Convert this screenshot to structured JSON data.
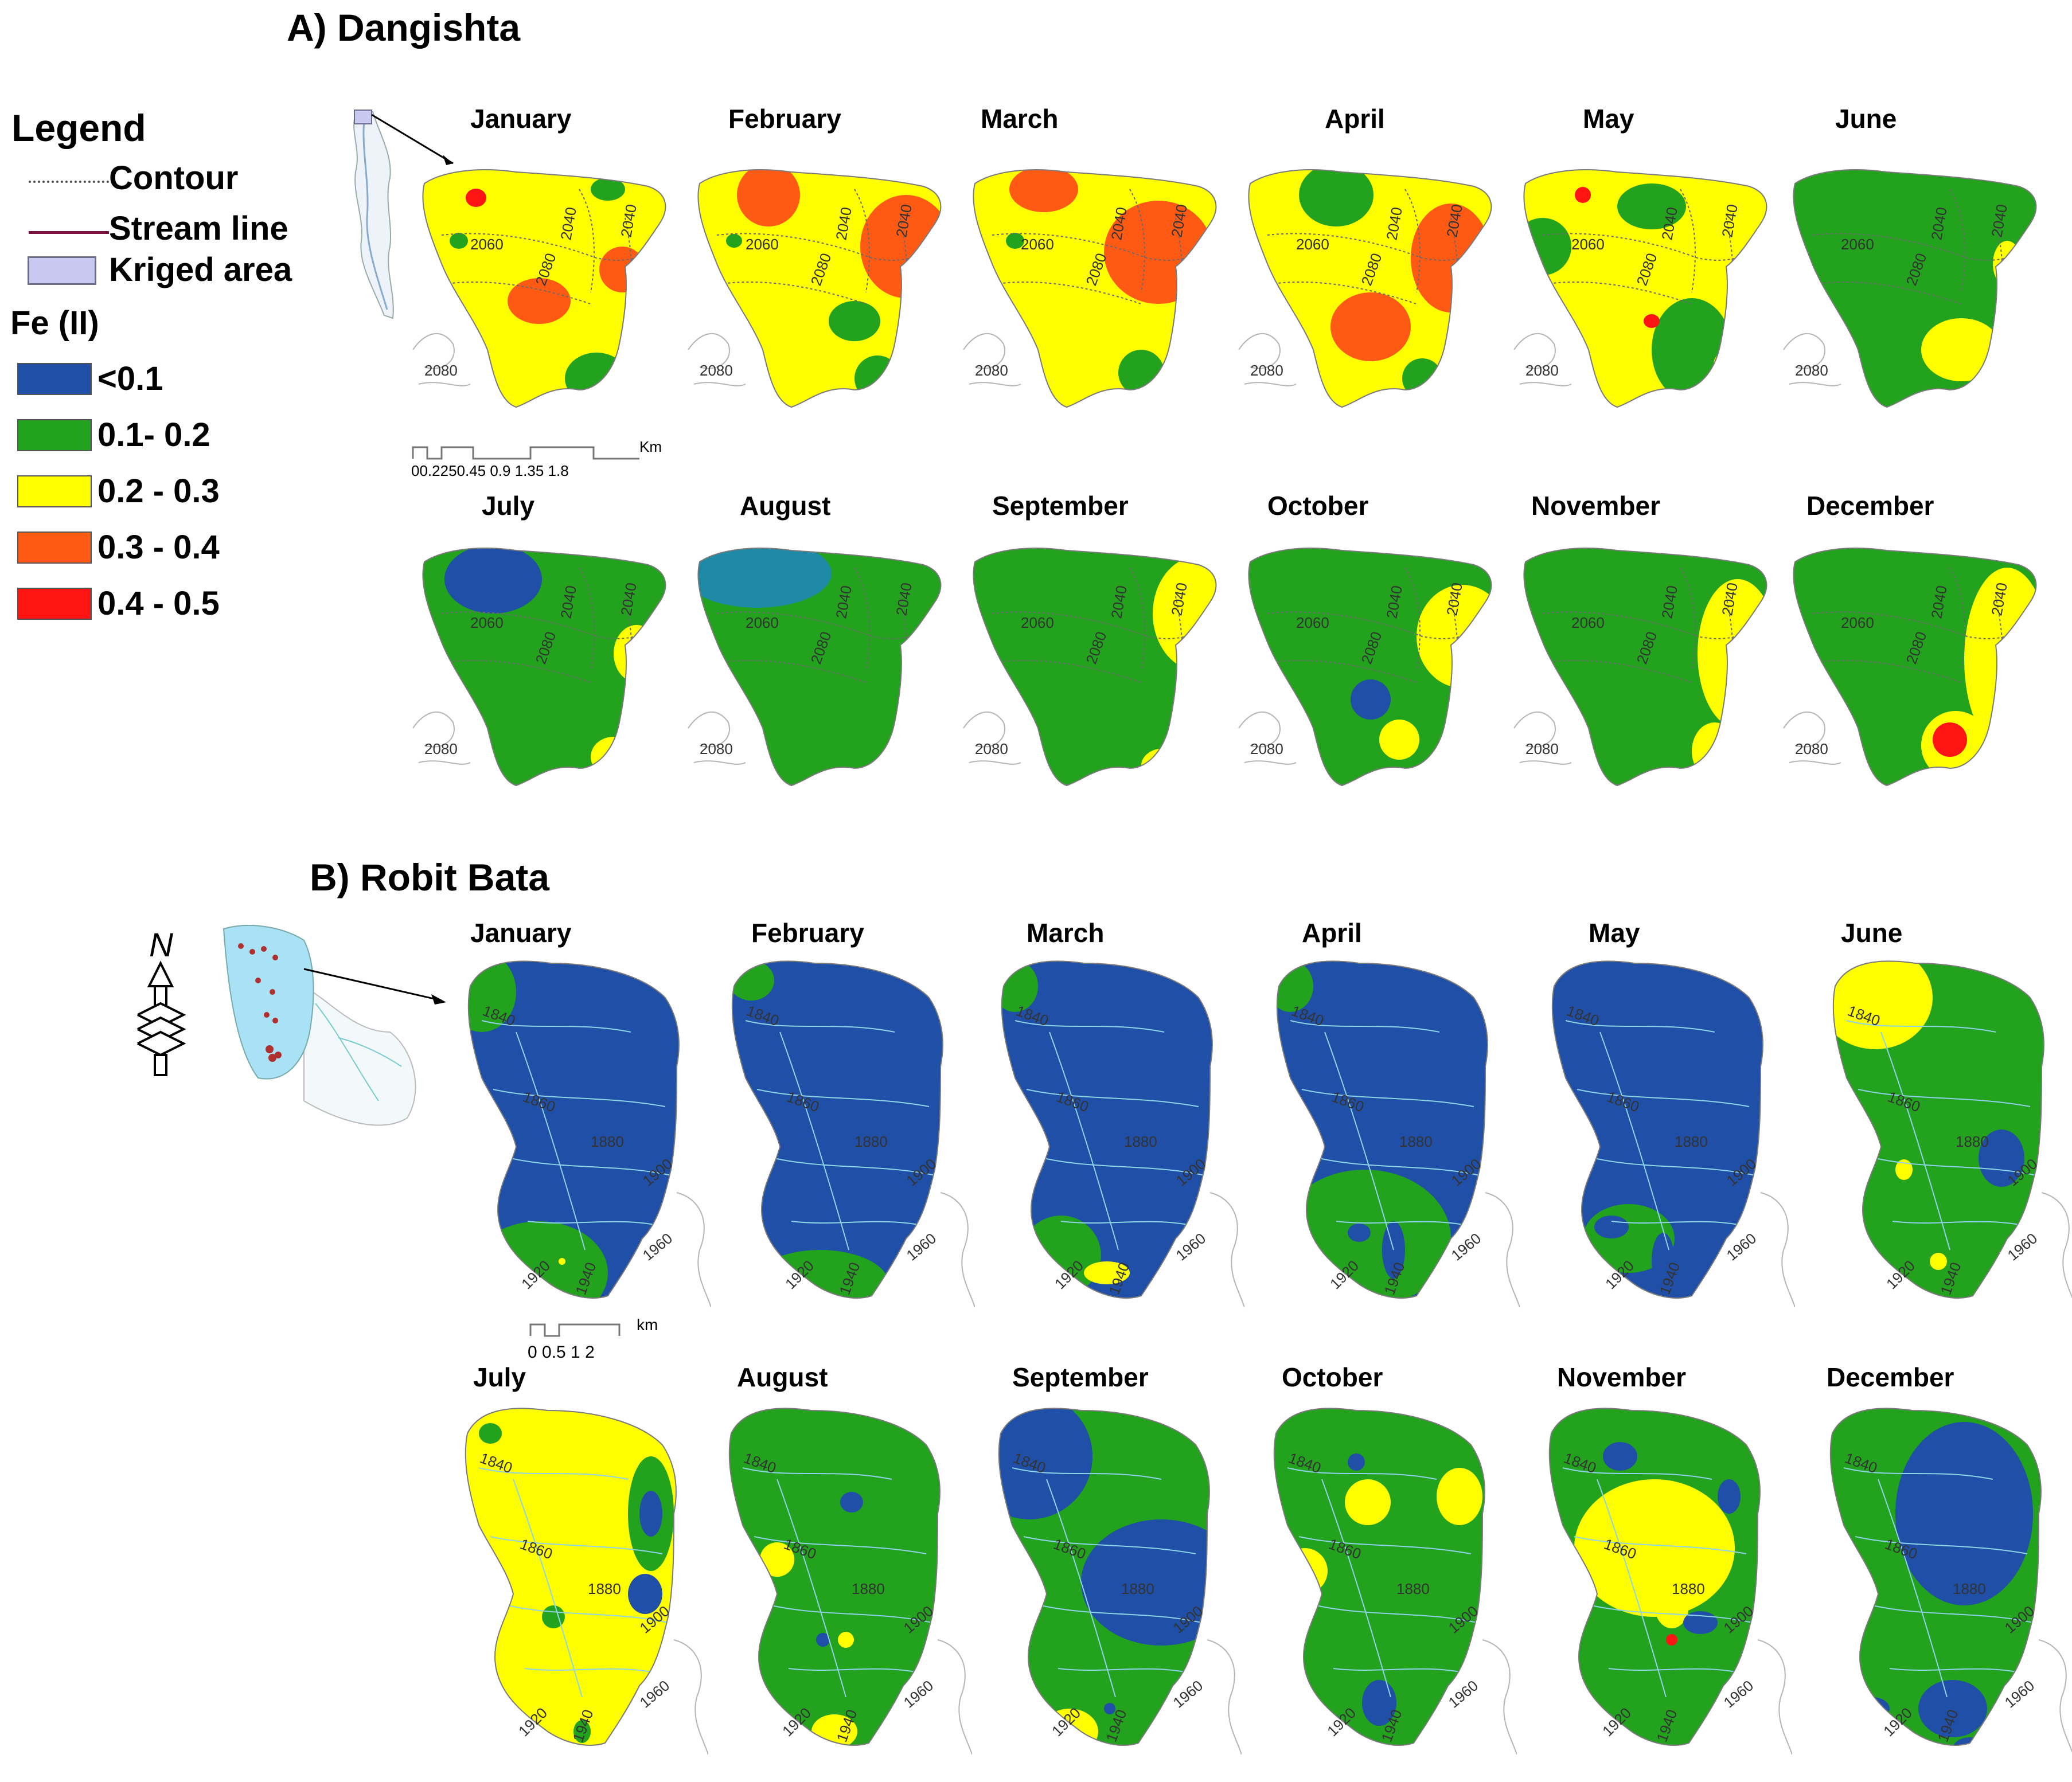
{
  "section_a": {
    "title": "A) Dangishta"
  },
  "section_b": {
    "title": "B) Robit Bata"
  },
  "legend": {
    "heading": "Legend",
    "contour_label": "Contour",
    "stream_label": "Stream line",
    "kriged_label": "Kriged area",
    "fe_heading": "Fe (II)",
    "classes": [
      {
        "label": "<0.1",
        "color": "#1f4fa6"
      },
      {
        "label": "0.1- 0.2",
        "color": "#22a21d"
      },
      {
        "label": "0.2 - 0.3",
        "color": "#ffff00"
      },
      {
        "label": "0.3 - 0.4",
        "color": "#ff5a14"
      },
      {
        "label": "0.4 - 0.5",
        "color": "#ff1414"
      }
    ],
    "kriged_color": "#c8c8f0",
    "stream_color": "#7a1040"
  },
  "months": [
    "January",
    "February",
    "March",
    "April",
    "May",
    "June",
    "July",
    "August",
    "September",
    "October",
    "November",
    "December"
  ],
  "dangishta": {
    "contours": [
      "2040",
      "2060",
      "2080",
      "2080",
      "2040"
    ],
    "scale": {
      "ticks": [
        "0",
        "0.225",
        "0.45",
        "0.9",
        "1.35",
        "1.8"
      ],
      "unit": "Km",
      "tick_text": "00.2250.45 0.9 1.35 1.8"
    },
    "base_class": [
      "0.2 - 0.3",
      "0.2 - 0.3",
      "0.2 - 0.3",
      "0.2 - 0.3",
      "0.2 - 0.3",
      "0.1- 0.2",
      "0.1- 0.2",
      "0.1- 0.2",
      "0.1- 0.2",
      "0.1- 0.2",
      "0.1- 0.2",
      "0.1- 0.2"
    ]
  },
  "robit_bata": {
    "contours": [
      "1840",
      "1860",
      "1880",
      "1900",
      "1920",
      "1940",
      "1960"
    ],
    "scale": {
      "ticks": [
        "0",
        "0.5",
        "1",
        "2"
      ],
      "unit": "km",
      "tick_text": "0 0.5 1      2"
    },
    "north_label": "N",
    "base_class": [
      "<0.1",
      "<0.1",
      "<0.1",
      "<0.1",
      "<0.1",
      "0.1- 0.2",
      "0.2 - 0.3",
      "0.1- 0.2",
      "0.1- 0.2",
      "0.1- 0.2",
      "0.1- 0.2",
      "0.1- 0.2"
    ]
  }
}
